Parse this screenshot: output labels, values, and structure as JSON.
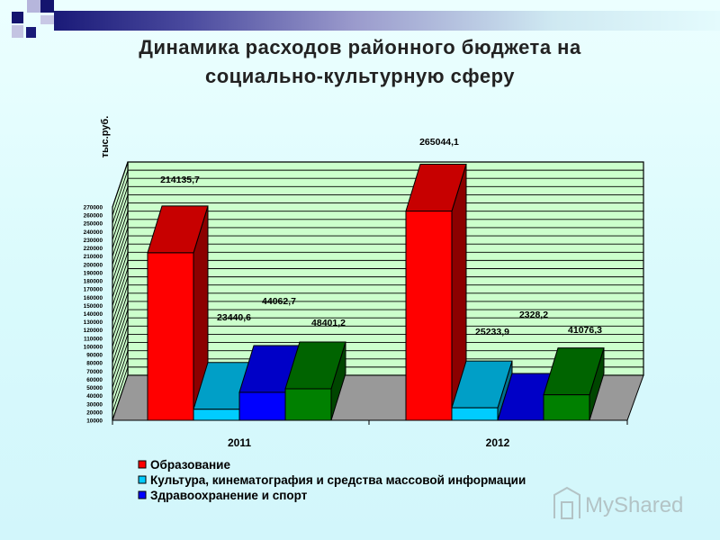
{
  "title_line1": "Динамика расходов районного бюджета на",
  "title_line2": "социально-культурную сферу",
  "chart_data": {
    "type": "bar",
    "ylabel": "тыс.руб.",
    "categories": [
      "2011",
      "2012"
    ],
    "ylim": [
      10000,
      270000
    ],
    "ytick_step": 10000,
    "series": [
      {
        "name": "Образование",
        "values": [
          214135.7,
          265044.1
        ],
        "labels": [
          "214135,7",
          "265044,1"
        ],
        "color": "#ff0000"
      },
      {
        "name": "Культура, кинематография и средства массовой информации",
        "values": [
          23440.6,
          25233.9
        ],
        "labels": [
          "23440,6",
          "25233,9"
        ],
        "color": "#00ccff"
      },
      {
        "name": "Здравоохранение и спорт",
        "values": [
          44062.7,
          2328.2
        ],
        "labels": [
          "44062,7",
          "2328,2"
        ],
        "color": "#0000ff"
      },
      {
        "name": "",
        "values": [
          48401.2,
          41076.3
        ],
        "labels": [
          "48401,2",
          "41076,3"
        ],
        "color": "#008000"
      }
    ],
    "legend": "bottom",
    "grid": true
  },
  "watermark": "MyShared"
}
